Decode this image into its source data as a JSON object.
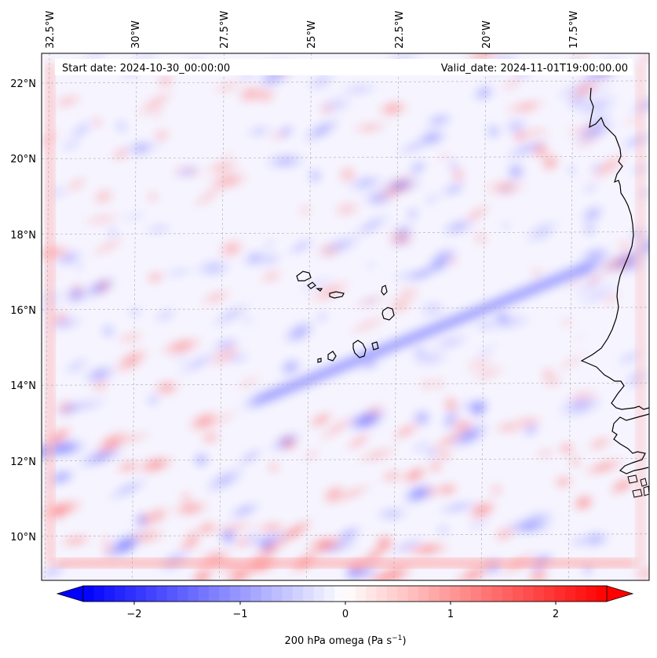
{
  "map": {
    "start_date": "Start date: 2024-10-30_00:00:00",
    "valid_date": "Valid_date: 2024-11-01T19:00:00.00",
    "longitude_labels": [
      "32.5°W",
      "30°W",
      "27.5°W",
      "25°W",
      "22.5°W",
      "20°W",
      "17.5°W"
    ],
    "longitude_values": [
      -32.5,
      -30,
      -27.5,
      -25,
      -22.5,
      -20,
      -17.5
    ],
    "latitude_labels": [
      "22°N",
      "20°N",
      "18°N",
      "16°N",
      "14°N",
      "12°N",
      "10°N"
    ],
    "latitude_values": [
      22,
      20,
      18,
      16,
      14,
      12,
      10
    ],
    "features": [
      "West African coastline",
      "Cape Verde islands"
    ],
    "colormap": "bwr"
  },
  "colorbar": {
    "label": "200 hPa omega (Pa s",
    "label_exponent": "−1",
    "label_close": ")",
    "tick_labels": [
      "−2",
      "−1",
      "0",
      "1",
      "2"
    ],
    "tick_values": [
      -2,
      -1,
      0,
      1,
      2
    ],
    "range": [
      -2.75,
      2.75
    ],
    "extend": "both",
    "min_color": "#0000ff",
    "max_color": "#ff0000"
  }
}
